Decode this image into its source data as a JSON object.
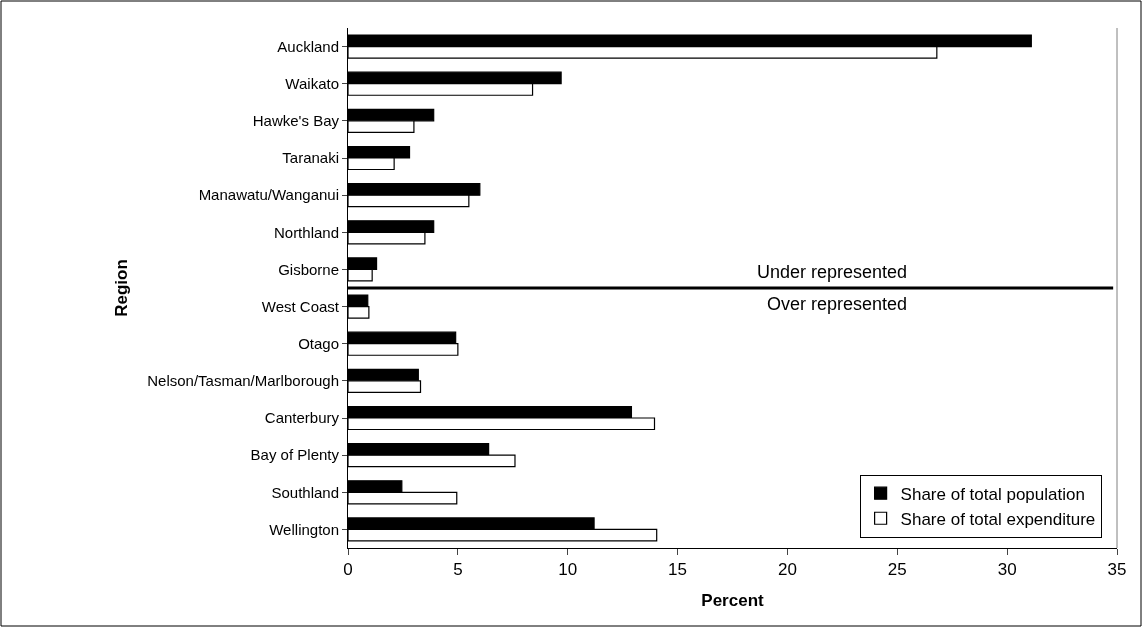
{
  "chart_data": {
    "type": "bar",
    "orientation": "horizontal",
    "xlabel": "Percent",
    "ylabel": "Region",
    "categories": [
      "Auckland",
      "Waikato",
      "Hawke's Bay",
      "Taranaki",
      "Manawatu/Wanganui",
      "Northland",
      "Gisborne",
      "West Coast",
      "Otago",
      "Nelson/Tasman/Marlborough",
      "Canterbury",
      "Bay of Plenty",
      "Southland",
      "Wellington"
    ],
    "series": [
      {
        "name": "Share of total population",
        "color": "#000000",
        "values": [
          31.1,
          9.7,
          3.9,
          2.8,
          6.0,
          3.9,
          1.3,
          0.9,
          4.9,
          3.2,
          12.9,
          6.4,
          2.45,
          11.2
        ]
      },
      {
        "name": "Share of total expenditure",
        "color": "#ffffff",
        "values": [
          26.8,
          8.4,
          3.0,
          2.1,
          5.5,
          3.5,
          1.1,
          0.95,
          5.0,
          3.3,
          13.95,
          7.6,
          4.95,
          14.05
        ]
      }
    ],
    "xlim": [
      0,
      35
    ],
    "xticks": [
      0,
      5,
      10,
      15,
      20,
      25,
      30,
      35
    ],
    "annotations": [
      "Under represented",
      "Over represented"
    ],
    "legend": "bottom right"
  }
}
